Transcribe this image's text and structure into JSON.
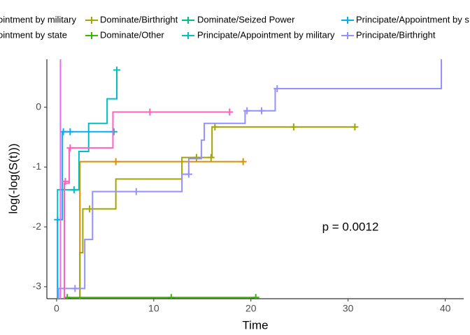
{
  "chart_data": {
    "type": "step",
    "x_label": "Time",
    "y_label": "log(-log(S(t)))",
    "annotation": "p = 0.0012",
    "xlim": [
      -1.0,
      41.9
    ],
    "ylim": [
      -3.2,
      0.8
    ],
    "xticks": [
      0,
      10,
      20,
      30,
      40
    ],
    "yticks": [
      -3,
      -2,
      -1,
      0
    ],
    "series": [
      {
        "name": "ointment by military",
        "color": "#F8766D",
        "x": [],
        "values": [],
        "censor_x": [],
        "censor_values": []
      },
      {
        "name": "ointment by state",
        "color": "#D89000",
        "x": [
          2.4,
          19.2
        ],
        "values": [
          -0.91,
          -0.91
        ],
        "censor_x": [
          6.1,
          19.2
        ],
        "censor_values": [
          -0.91,
          -0.91
        ]
      },
      {
        "name": "Dominate/Birthright",
        "color": "#A3A500",
        "x": [
          2.4,
          2.7,
          6.1,
          12.9,
          16.0,
          30.7
        ],
        "values": [
          -2.43,
          -1.7,
          -1.2,
          -0.84,
          -0.33,
          -0.33
        ],
        "censor_x": [
          3.4,
          14.4,
          15.9,
          16.3,
          24.4,
          30.7
        ],
        "censor_values": [
          -1.7,
          -0.84,
          -0.84,
          -0.33,
          -0.33,
          -0.33
        ]
      },
      {
        "name": "Dominate/Other",
        "color": "#39B600",
        "x": [
          1.1,
          20.5
        ],
        "values": [
          -3.18,
          -3.18
        ],
        "censor_x": [
          1.1,
          11.8,
          20.5
        ],
        "censor_values": [
          -3.18,
          -3.18,
          -3.18
        ]
      },
      {
        "name": "Dominate/Seized Power",
        "color": "#00BF7D",
        "x": [],
        "values": [],
        "censor_x": [],
        "censor_values": []
      },
      {
        "name": "Principate/Appointment by military",
        "color": "#00BFC4",
        "x": [
          0.1,
          2.3,
          3.3,
          5.2,
          6.2
        ],
        "values": [
          -1.38,
          -0.74,
          -0.27,
          0.14,
          0.62
        ],
        "censor_x": [
          1.8,
          6.2
        ],
        "censor_values": [
          -1.38,
          0.62
        ]
      },
      {
        "name": "Principate/Appointment by s",
        "color": "#00B0F6",
        "x": [
          0.1,
          0.6,
          6.0
        ],
        "values": [
          -1.88,
          -0.41,
          -0.41
        ],
        "censor_x": [
          0.1,
          0.7,
          1.4,
          5.9
        ],
        "censor_values": [
          -1.88,
          -0.41,
          -0.41,
          -0.41
        ]
      },
      {
        "name": "Principate/Birthright",
        "color": "#9590FF",
        "x": [
          0.2,
          2.9,
          3.7,
          12.9,
          13.6,
          14.9,
          15.2,
          19.4,
          22.5,
          39.6
        ],
        "values": [
          -3.03,
          -2.21,
          -1.41,
          -1.12,
          -0.86,
          -0.55,
          -0.27,
          -0.06,
          0.31,
          0.8
        ],
        "censor_x": [
          1.9,
          8.2,
          13.6,
          19.6,
          21.1,
          22.7
        ],
        "censor_values": [
          -3.03,
          -1.41,
          -1.12,
          -0.06,
          -0.06,
          0.31
        ]
      },
      {
        "color": "#E76BF3",
        "x": [
          0.4
        ],
        "values": [
          0.8
        ],
        "censor_x": [],
        "censor_values": []
      },
      {
        "color": "#FF62BC",
        "x": [
          0.8,
          1.3,
          5.8,
          17.8
        ],
        "values": [
          -1.27,
          -0.68,
          -0.08,
          -0.08
        ],
        "censor_x": [
          0.9,
          1.4,
          9.6,
          17.8
        ],
        "censor_values": [
          -1.24,
          -0.68,
          -0.08,
          -0.08
        ]
      }
    ]
  }
}
